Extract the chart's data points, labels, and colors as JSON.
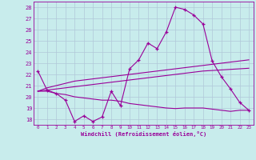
{
  "xlabel": "Windchill (Refroidissement éolien,°C)",
  "bg_color": "#c8ecec",
  "line_color": "#990099",
  "grid_color": "#b0c8d8",
  "ylim": [
    17.5,
    28.5
  ],
  "xlim": [
    -0.5,
    23.5
  ],
  "yticks": [
    18,
    19,
    20,
    21,
    22,
    23,
    24,
    25,
    26,
    27,
    28
  ],
  "xticks": [
    0,
    1,
    2,
    3,
    4,
    5,
    6,
    7,
    8,
    9,
    10,
    11,
    12,
    13,
    14,
    15,
    16,
    17,
    18,
    19,
    20,
    21,
    22,
    23
  ],
  "series": [
    [
      22.3,
      20.6,
      20.3,
      19.7,
      17.8,
      18.3,
      17.8,
      18.2,
      20.5,
      19.2,
      22.5,
      23.3,
      24.8,
      24.3,
      25.8,
      28.0,
      27.8,
      27.3,
      26.5,
      23.2,
      21.8,
      20.7,
      19.5,
      18.8
    ],
    [
      20.5,
      20.8,
      21.0,
      21.2,
      21.4,
      21.5,
      21.6,
      21.7,
      21.8,
      21.9,
      22.0,
      22.1,
      22.2,
      22.3,
      22.4,
      22.5,
      22.6,
      22.7,
      22.8,
      22.9,
      23.0,
      23.1,
      23.2,
      23.3
    ],
    [
      20.5,
      20.6,
      20.7,
      20.8,
      20.9,
      21.0,
      21.1,
      21.2,
      21.3,
      21.4,
      21.5,
      21.6,
      21.7,
      21.8,
      21.9,
      22.0,
      22.1,
      22.2,
      22.3,
      22.35,
      22.4,
      22.45,
      22.5,
      22.55
    ],
    [
      20.5,
      20.5,
      20.3,
      20.2,
      20.0,
      19.9,
      19.8,
      19.7,
      19.7,
      19.6,
      19.4,
      19.3,
      19.2,
      19.1,
      19.0,
      18.95,
      19.0,
      19.0,
      19.0,
      18.9,
      18.8,
      18.7,
      18.8,
      18.8
    ]
  ]
}
